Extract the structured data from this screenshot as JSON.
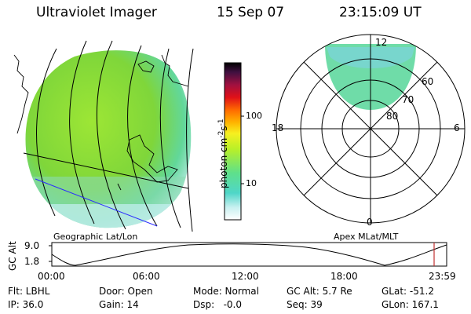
{
  "header": {
    "instrument": "Ultraviolet Imager",
    "date": "15 Sep 07",
    "time": "23:15:09 UT"
  },
  "colorbar": {
    "unit_label": "photon cm-2 s-1",
    "unit_main": "photon cm",
    "unit_sup1": "-2",
    "unit_s": "s",
    "unit_sup2": "-1",
    "ticks": [
      "100",
      "10"
    ]
  },
  "polar_plot": {
    "mlt_labels": [
      "12",
      "18",
      "6",
      "0"
    ],
    "mlat_labels": [
      "60",
      "70",
      "80"
    ],
    "label": "Apex MLat/MLT"
  },
  "map": {
    "label": "Geographic Lat/Lon"
  },
  "altitude_plot": {
    "axis_label": "GC Alt",
    "y_ticks": [
      "9.0",
      "1.8"
    ],
    "x_ticks": [
      "00:00",
      "06:00",
      "12:00",
      "18:00",
      "23:59"
    ]
  },
  "status": {
    "flt": "Flt: LBHL",
    "ip": "IP: 36.0",
    "door": "Door: Open",
    "gain": "Gain: 14",
    "mode": "Mode: Normal",
    "dsp": "Dsp:   -0.0",
    "gc_alt": "GC Alt: 5.7 Re",
    "seq": "Seq: 39",
    "glat": "GLat: -51.2",
    "glon": "GLon: 167.1"
  }
}
